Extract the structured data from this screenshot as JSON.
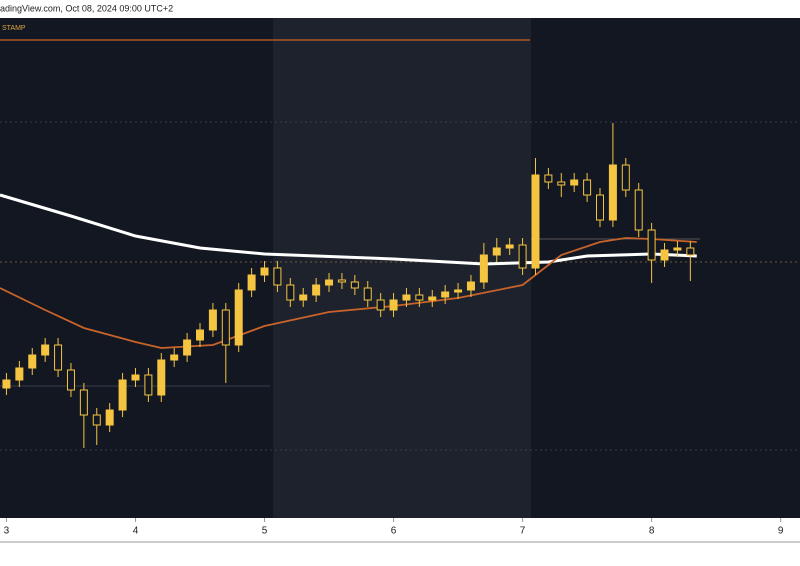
{
  "header": {
    "source": "radingView.com, Oct 08, 2024 09:00 UTC+2",
    "label": "STAMP"
  },
  "chart_data": {
    "type": "candlestick",
    "x": [
      3,
      3.1,
      3.2,
      3.3,
      3.4,
      3.5,
      3.6,
      3.7,
      3.8,
      3.9,
      4,
      4.1,
      4.2,
      4.3,
      4.4,
      4.5,
      4.6,
      4.7,
      4.8,
      4.9,
      5,
      5.1,
      5.2,
      5.3,
      5.4,
      5.5,
      5.6,
      5.7,
      5.8,
      5.9,
      6,
      6.1,
      6.2,
      6.3,
      6.4,
      6.5,
      6.6,
      6.7,
      6.8,
      6.9,
      7,
      7.1,
      7.2,
      7.3,
      7.4,
      7.5,
      7.6,
      7.7,
      7.8,
      7.9,
      8,
      8.1,
      8.2,
      8.3
    ],
    "open": [
      26,
      27.6,
      30,
      32.6,
      34.6,
      29.6,
      25.6,
      20.6,
      18.6,
      21.6,
      27.6,
      28.6,
      24.6,
      31.6,
      32.6,
      35.6,
      37.6,
      41.6,
      34.6,
      45.6,
      48.6,
      50,
      46.6,
      43.6,
      44.6,
      46.6,
      47.6,
      47.2,
      46,
      43.6,
      41.6,
      43.6,
      44.6,
      43.6,
      44.2,
      45.2,
      45.6,
      47.2,
      52.6,
      54,
      54.6,
      50,
      68.6,
      67.2,
      66.6,
      67.6,
      64.6,
      59.6,
      70.6,
      65.6,
      57.6,
      51.6,
      53.6,
      54
    ],
    "high": [
      29,
      31.4,
      34,
      36,
      36,
      31,
      27,
      22,
      23,
      29,
      30,
      30,
      33,
      34,
      37,
      39,
      43,
      43,
      47,
      50,
      51.4,
      51.4,
      48,
      46,
      48,
      49,
      49,
      48.6,
      47.4,
      45,
      45,
      46,
      46,
      45.6,
      46.6,
      47,
      48.6,
      55,
      56,
      56,
      56,
      72,
      70,
      69,
      69,
      69,
      66,
      79,
      72,
      67,
      59,
      55,
      55.4,
      55.4
    ],
    "low": [
      24.6,
      26.2,
      28.6,
      31.2,
      28.2,
      24.2,
      14,
      14.6,
      17.2,
      20.2,
      26.2,
      23.2,
      23.2,
      30.2,
      31.2,
      34.2,
      36.2,
      27,
      33.2,
      44.2,
      47.2,
      45.2,
      42.2,
      42.2,
      43.2,
      45.2,
      45.8,
      44.6,
      42.2,
      40.2,
      40.2,
      42.2,
      42.2,
      42.2,
      42.8,
      43.8,
      44.2,
      45.8,
      51.2,
      52.6,
      48.6,
      48.6,
      65.8,
      64.2,
      65.2,
      63.2,
      58.2,
      58.2,
      64.2,
      56.2,
      47,
      50.2,
      52.2,
      47.4
    ],
    "close": [
      27.6,
      30,
      32.6,
      34.6,
      29.6,
      25.6,
      20.6,
      18.6,
      21.6,
      27.6,
      28.6,
      24.6,
      31.6,
      32.6,
      35.6,
      37.6,
      41.6,
      34.6,
      45.6,
      48.6,
      50,
      46.6,
      43.6,
      44.6,
      46.6,
      47.6,
      47.2,
      46,
      43.6,
      41.6,
      43.6,
      44.6,
      43.6,
      44.2,
      45.2,
      45.6,
      47.2,
      52.6,
      54,
      54.6,
      50,
      68.6,
      67.2,
      66.6,
      67.6,
      64.6,
      59.6,
      70.6,
      65.6,
      57.6,
      51.6,
      53.6,
      54,
      52.6
    ],
    "color": "#f5c542",
    "lines": [
      {
        "color": "#ffffff",
        "x": [
          2.95,
          3.5,
          4,
          4.5,
          5,
          6,
          6.7,
          7.2,
          7.5,
          8,
          8.35
        ],
        "values": [
          64.6,
          60.4,
          56.4,
          54,
          52.8,
          51.8,
          50.8,
          51.2,
          52.4,
          52.8,
          52.4
        ]
      },
      {
        "color": "#c8642a",
        "x": [
          2.95,
          3.3,
          3.6,
          4,
          4.2,
          4.6,
          5,
          5.5,
          6,
          6.5,
          7,
          7.3,
          7.6,
          7.8,
          8,
          8.35
        ],
        "values": [
          46,
          41.6,
          38,
          35.2,
          34,
          34.6,
          38.4,
          41.2,
          42.4,
          44,
          46.6,
          52.6,
          55.2,
          56,
          55.8,
          55.2
        ]
      }
    ],
    "xlim": [
      2.95,
      9.15
    ],
    "xticks": [
      3,
      4,
      5,
      6,
      7,
      8,
      9
    ],
    "ylim": [
      0,
      100
    ]
  }
}
